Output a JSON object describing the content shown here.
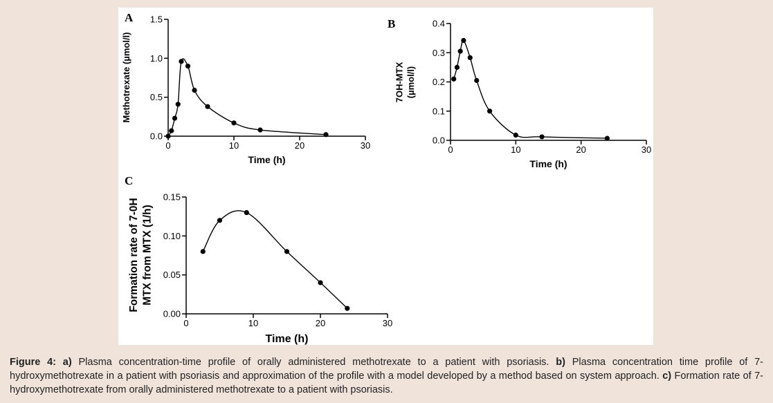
{
  "chart_data": [
    {
      "type": "line",
      "panel_label": "A",
      "xlabel": "Time (h)",
      "ylabel": "Methotrexate (µmol/l)",
      "xlim": [
        0,
        30
      ],
      "ylim": [
        0,
        1.5
      ],
      "x_ticks": [
        "0",
        "10",
        "20",
        "30"
      ],
      "y_ticks": [
        "0.0",
        "0.5",
        "1.0",
        "1.5"
      ],
      "grid": false,
      "series": [
        {
          "x": [
            0,
            0.5,
            1,
            1.5,
            2,
            3,
            4,
            6,
            10,
            14,
            24
          ],
          "y": [
            0.0,
            0.07,
            0.23,
            0.41,
            0.96,
            0.9,
            0.59,
            0.38,
            0.17,
            0.08,
            0.02
          ]
        }
      ]
    },
    {
      "type": "line",
      "panel_label": "B",
      "xlabel": "Time (h)",
      "ylabel": "7OH-MTX (µmol/l)",
      "xlim": [
        0,
        30
      ],
      "ylim": [
        0,
        0.4
      ],
      "x_ticks": [
        "0",
        "10",
        "20",
        "30"
      ],
      "y_ticks": [
        "0.0",
        "0.1",
        "0.2",
        "0.3",
        "0.4"
      ],
      "grid": false,
      "series": [
        {
          "x": [
            0.5,
            1,
            1.5,
            2,
            3,
            4,
            6,
            10,
            14,
            24
          ],
          "y": [
            0.21,
            0.25,
            0.305,
            0.342,
            0.283,
            0.205,
            0.1,
            0.018,
            0.012,
            0.007
          ]
        }
      ]
    },
    {
      "type": "line",
      "panel_label": "C",
      "xlabel": "Time (h)",
      "ylabel": "Formation rate of 7-0H MTX from MTX (1/h)",
      "xlim": [
        0,
        30
      ],
      "ylim": [
        0,
        0.15
      ],
      "x_ticks": [
        "0",
        "10",
        "20",
        "30"
      ],
      "y_ticks": [
        "0.00",
        "0.05",
        "0.10",
        "0.15"
      ],
      "grid": false,
      "series": [
        {
          "x": [
            2.5,
            5,
            9,
            15,
            20,
            24
          ],
          "y": [
            0.08,
            0.12,
            0.13,
            0.08,
            0.04,
            0.007
          ]
        }
      ]
    }
  ],
  "caption": {
    "figure_label": "Figure 4:",
    "part_a_label": "a)",
    "part_a_text": " Plasma concentration-time profile of orally administered methotrexate to a patient with psoriasis. ",
    "part_b_label": "b)",
    "part_b_text": " Plasma concentration time profile of 7-hydroxymethotrexate in a patient with psoriasis and approximation of the profile with a model developed by a method based on system approach. ",
    "part_c_label": "c)",
    "part_c_text": " Formation rate of 7-hydroxymethotrexate from orally administered methotrexate to a patient with psoriasis."
  }
}
